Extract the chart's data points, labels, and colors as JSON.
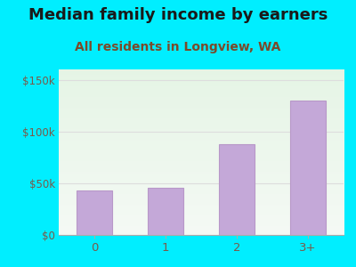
{
  "title": "Median family income by earners",
  "subtitle": "All residents in Longview, WA",
  "categories": [
    "0",
    "1",
    "2",
    "3+"
  ],
  "values": [
    43000,
    46000,
    88000,
    130000
  ],
  "bar_color": "#c4a8d8",
  "bar_edge_color": "#b898c8",
  "background_outer": "#00eeff",
  "title_color": "#1a1a1a",
  "subtitle_color": "#7a4a2a",
  "tick_label_color": "#7a5a4a",
  "ylim": [
    0,
    160000
  ],
  "yticks": [
    0,
    50000,
    100000,
    150000
  ],
  "ytick_labels": [
    "$0",
    "$50k",
    "$100k",
    "$150k"
  ],
  "title_fontsize": 13,
  "subtitle_fontsize": 10,
  "grid_color": "#dddddd"
}
